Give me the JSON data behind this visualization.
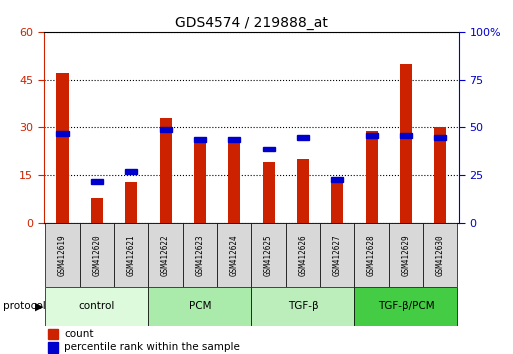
{
  "title": "GDS4574 / 219888_at",
  "samples": [
    "GSM412619",
    "GSM412620",
    "GSM412621",
    "GSM412622",
    "GSM412623",
    "GSM412624",
    "GSM412625",
    "GSM412626",
    "GSM412627",
    "GSM412628",
    "GSM412629",
    "GSM412630"
  ],
  "count_values": [
    47,
    8,
    13,
    33,
    25,
    26,
    19,
    20,
    14,
    29,
    50,
    30
  ],
  "percentile_values": [
    48,
    23,
    28,
    50,
    45,
    45,
    40,
    46,
    24,
    47,
    47,
    46
  ],
  "groups": [
    {
      "label": "control",
      "start": 0,
      "end": 3,
      "color": "#ddfadd"
    },
    {
      "label": "PCM",
      "start": 3,
      "end": 6,
      "color": "#aaeaaa"
    },
    {
      "label": "TGF-β",
      "start": 6,
      "end": 9,
      "color": "#bbeebb"
    },
    {
      "label": "TGF-β/PCM",
      "start": 9,
      "end": 12,
      "color": "#44cc44"
    }
  ],
  "left_ylim": [
    0,
    60
  ],
  "left_yticks": [
    0,
    15,
    30,
    45,
    60
  ],
  "right_ylim": [
    0,
    100
  ],
  "right_yticks": [
    0,
    25,
    50,
    75,
    100
  ],
  "right_yticklabels": [
    "0",
    "25",
    "50",
    "75",
    "100%"
  ],
  "bar_color": "#cc2200",
  "dot_color": "#0000cc",
  "left_tick_color": "#cc2200",
  "right_tick_color": "#0000cc",
  "legend_count_label": "count",
  "legend_percentile_label": "percentile rank within the sample",
  "protocol_label": "protocol",
  "bar_width": 0.35
}
